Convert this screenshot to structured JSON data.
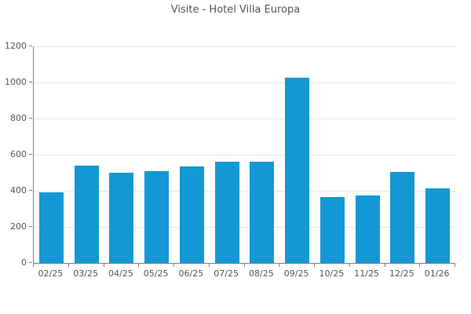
{
  "chart_data": {
    "type": "bar",
    "title": "Visite - Hotel Villa Europa",
    "categories": [
      "02/25",
      "03/25",
      "04/25",
      "05/25",
      "06/25",
      "07/25",
      "08/25",
      "09/25",
      "10/25",
      "11/25",
      "12/25",
      "01/26"
    ],
    "values": [
      390,
      540,
      500,
      510,
      535,
      560,
      560,
      1025,
      365,
      375,
      505,
      415
    ],
    "xlabel": "",
    "ylabel": "",
    "ylim": [
      0,
      1200
    ],
    "yticks": [
      0,
      200,
      400,
      600,
      800,
      1000,
      1200
    ],
    "grid": true,
    "legend_position": "none",
    "colors": {
      "bar": "#1398d4",
      "axis": "#808080",
      "grid": "#e5e5e5",
      "text": "#555555"
    }
  }
}
